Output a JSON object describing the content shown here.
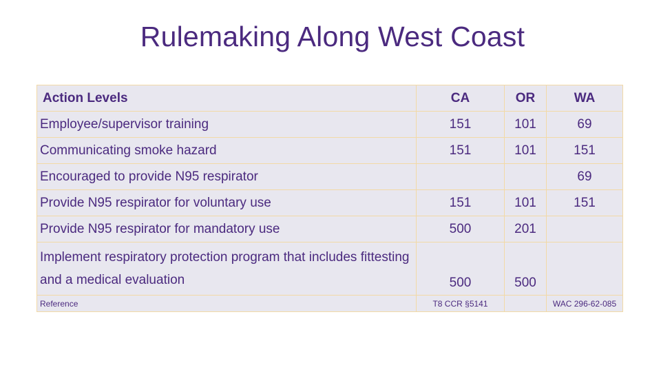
{
  "title": "Rulemaking Along West Coast",
  "table": {
    "headers": [
      "Action Levels",
      "CA",
      "OR",
      "WA"
    ],
    "rows": [
      {
        "action": "Employee/supervisor training",
        "ca": "151",
        "or": "101",
        "wa": "69"
      },
      {
        "action": "Communicating smoke hazard",
        "ca": "151",
        "or": "101",
        "wa": "151"
      },
      {
        "action": "Encouraged to provide N95 respirator",
        "ca": "",
        "or": "",
        "wa": "69"
      },
      {
        "action": "Provide N95 respirator for voluntary use",
        "ca": "151",
        "or": "101",
        "wa": "151"
      },
      {
        "action": "Provide N95 respirator for mandatory use",
        "ca": "500",
        "or": "201",
        "wa": ""
      },
      {
        "action": "Implement respiratory protection program that includes fittesting and a medical evaluation",
        "ca": "500",
        "or": "500",
        "wa": ""
      }
    ],
    "reference": {
      "label": "Reference",
      "ca": "T8 CCR §5141",
      "or": "",
      "wa": "WAC 296-62-085"
    }
  },
  "colors": {
    "text": "#4b2a7f",
    "cell_background": "#e8e7ef",
    "cell_border": "#f2d9a6"
  }
}
